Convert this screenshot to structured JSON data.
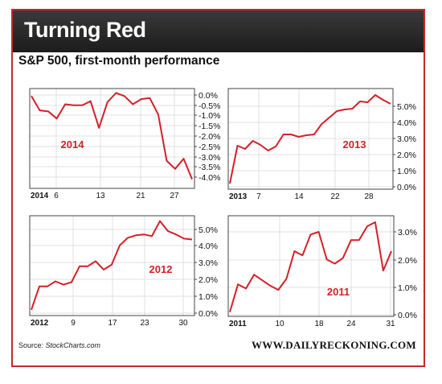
{
  "header": {
    "title": "Turning Red"
  },
  "subtitle": "S&P 500, first-month performance",
  "footer": {
    "source_prefix": "Source: ",
    "source_name": "StockCharts.com",
    "site": "WWW.DAILYRECKONING.COM"
  },
  "colors": {
    "accent": "#c8262b",
    "line": "#d42027",
    "header_bg": "#2a2a2a"
  },
  "chart_data": [
    {
      "type": "line",
      "panel_label": "2014",
      "x_tick_labels": [
        "2014",
        "6",
        "13",
        "21",
        "27"
      ],
      "y_tick_labels": [
        "0.0%",
        "-0.5%",
        "-1.0%",
        "-1.5%",
        "-2.0%",
        "-2.5%",
        "-3.0%",
        "-3.5%",
        "-4.0%"
      ],
      "ylim": [
        -4.2,
        0.1
      ],
      "values": [
        -0.05,
        -0.75,
        -0.8,
        -1.15,
        -0.45,
        -0.5,
        -0.5,
        -0.3,
        -1.6,
        -0.35,
        0.1,
        -0.05,
        -0.45,
        -0.2,
        -0.15,
        -0.95,
        -3.2,
        -3.6,
        -3.1,
        -4.1
      ],
      "grid": true
    },
    {
      "type": "line",
      "panel_label": "2013",
      "x_tick_labels": [
        "2013",
        "7",
        "14",
        "22",
        "28"
      ],
      "y_tick_labels": [
        "5.0%",
        "4.0%",
        "3.0%",
        "2.0%",
        "1.0%",
        "0.0%"
      ],
      "ylim": [
        -0.05,
        5.9
      ],
      "values": [
        0.2,
        2.55,
        2.35,
        2.85,
        2.6,
        2.25,
        2.5,
        3.25,
        3.25,
        3.1,
        3.2,
        3.25,
        3.9,
        4.3,
        4.7,
        4.8,
        4.85,
        5.3,
        5.25,
        5.7,
        5.4,
        5.15
      ],
      "grid": true
    },
    {
      "type": "line",
      "panel_label": "2012",
      "x_tick_labels": [
        "2012",
        "9",
        "17",
        "23",
        "30"
      ],
      "y_tick_labels": [
        "5.0%",
        "4.0%",
        "3.0%",
        "2.0%",
        "1.0%",
        "0.0%"
      ],
      "ylim": [
        -0.05,
        5.7
      ],
      "values": [
        0.2,
        1.6,
        1.6,
        1.9,
        1.7,
        1.85,
        2.8,
        2.8,
        3.1,
        2.6,
        2.9,
        4.05,
        4.5,
        4.65,
        4.7,
        4.6,
        5.5,
        4.9,
        4.7,
        4.45,
        4.4
      ],
      "grid": true
    },
    {
      "type": "line",
      "panel_label": "2011",
      "x_tick_labels": [
        "2011",
        "10",
        "18",
        "24",
        "31"
      ],
      "y_tick_labels": [
        "3.0%",
        "2.0%",
        "1.0%",
        "0.0%"
      ],
      "ylim": [
        -0.05,
        3.5
      ],
      "values": [
        0.1,
        1.1,
        0.95,
        1.45,
        1.25,
        1.05,
        0.9,
        1.3,
        2.3,
        2.15,
        2.9,
        3.0,
        2.0,
        1.85,
        2.05,
        2.7,
        2.7,
        3.2,
        3.35,
        1.6,
        2.3
      ],
      "grid": true
    }
  ]
}
